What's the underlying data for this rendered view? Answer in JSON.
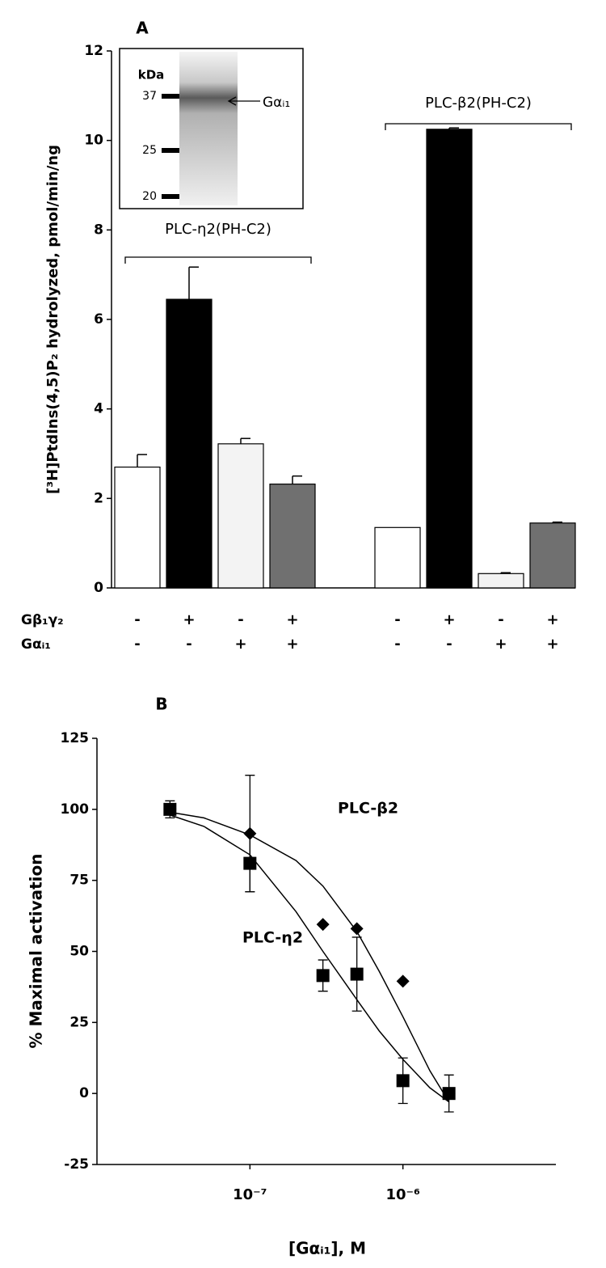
{
  "chart_data": [
    {
      "type": "bar",
      "panel": "A",
      "ylabel": "[³H]PtdIns(4,5)P₂ hydrolyzed, pmol/min/ng",
      "categories": [
        null,
        null,
        null,
        null,
        null,
        null,
        null,
        null
      ],
      "values": [
        2.7,
        6.45,
        3.22,
        2.32,
        1.35,
        10.25,
        0.32,
        1.45
      ],
      "errors": [
        0.28,
        0.72,
        0.12,
        0.18,
        0,
        0.03,
        0.02,
        0.02
      ],
      "colors": [
        "#ffffff",
        "#000000",
        "#f3f3f3",
        "#707070",
        "#ffffff",
        "#000000",
        "#f3f3f3",
        "#707070"
      ],
      "groups": [
        "PLC-η2(PH-C2)",
        "PLC-β2(PH-C2)"
      ],
      "treatments": [
        {
          "name": "Gβ₁γ₂",
          "signs": [
            "-",
            "+",
            "-",
            "+",
            "-",
            "+",
            "-",
            "+"
          ]
        },
        {
          "name": "Gαᵢ₁",
          "signs": [
            "-",
            "-",
            "+",
            "+",
            "-",
            "-",
            "+",
            "+"
          ]
        }
      ],
      "inset": {
        "unit_label": "kDa",
        "markers": [
          37,
          25,
          20
        ],
        "band_label": "Gαᵢ₁"
      },
      "ylim": [
        0,
        12
      ],
      "yticks": [
        0,
        2,
        4,
        6,
        8,
        10,
        12
      ]
    },
    {
      "type": "scatter",
      "panel": "B",
      "xlabel": "[Gαᵢ₁], M",
      "ylabel": "% Maximal activation",
      "x": [
        3e-08,
        1e-07,
        3e-07,
        5e-07,
        1e-06,
        2e-06
      ],
      "fit_x": [
        3e-08,
        5e-08,
        1e-07,
        2e-07,
        3e-07,
        5e-07,
        7e-07,
        1e-06,
        1.5e-06,
        2e-06
      ],
      "series": [
        {
          "name": "PLC-η2",
          "color": "#000000",
          "marker": "square",
          "values": [
            100,
            81,
            41.5,
            42,
            4.5,
            0
          ],
          "errors": [
            3,
            10,
            5.5,
            13,
            8,
            6.5
          ],
          "fit_values": [
            98,
            94,
            84,
            64,
            50,
            33,
            22,
            12,
            2,
            -3
          ]
        },
        {
          "name": "PLC-β2",
          "color": "#000000",
          "marker": "diamond",
          "values": [
            100,
            91.5,
            59.5,
            58,
            39.5,
            0
          ],
          "errors": [
            null,
            20.5,
            null,
            null,
            null,
            null
          ],
          "fit_values": [
            99,
            97,
            91,
            82,
            73,
            57,
            43,
            27,
            8,
            -3
          ]
        }
      ],
      "xscale": "log",
      "xlim": [
        1e-08,
        1e-05
      ],
      "xticks": [
        {
          "value": 1e-07,
          "label": "10⁻⁷"
        },
        {
          "value": 1e-06,
          "label": "10⁻⁶"
        }
      ],
      "ylim": [
        -25,
        125
      ],
      "yticks": [
        -25,
        0,
        25,
        50,
        75,
        100,
        125
      ]
    }
  ]
}
